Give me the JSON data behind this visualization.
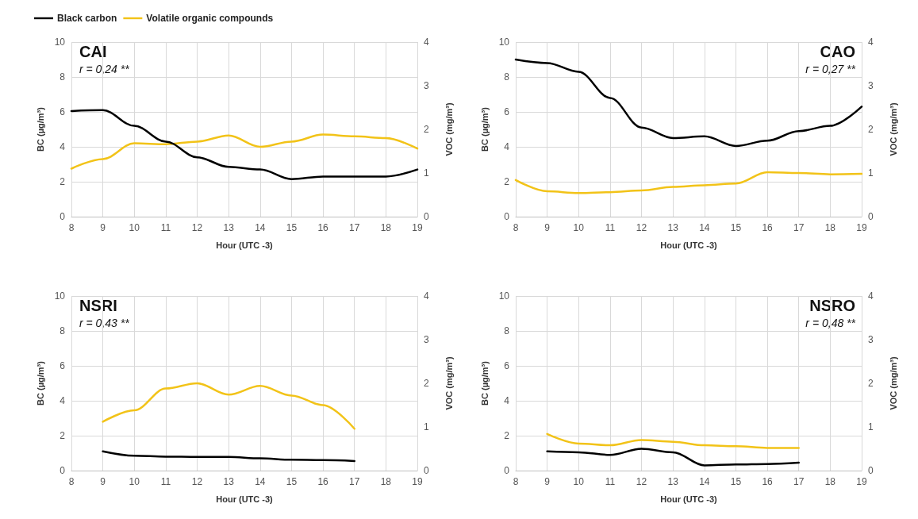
{
  "chart_data": [
    {
      "type": "line",
      "xlabel": "Hour (UTC -3)",
      "ylabel": "BC (µg/m³)",
      "y2label": "VOC (mg/m³)",
      "annotations": [
        "CAI",
        "r = 0,24 **"
      ],
      "x": [
        8,
        9,
        10,
        11,
        12,
        13,
        14,
        15,
        16,
        17,
        18,
        19
      ],
      "xlim": [
        8,
        19
      ],
      "xticks": [
        8,
        9,
        10,
        11,
        12,
        13,
        14,
        15,
        16,
        17,
        18,
        19
      ],
      "ylim": [
        0,
        10
      ],
      "yticks": [
        0,
        2,
        4,
        6,
        8,
        10
      ],
      "y2lim": [
        0,
        4
      ],
      "y2ticks": [
        0,
        1,
        2,
        3,
        4
      ],
      "grid": true,
      "legend": "top left",
      "marker": "none",
      "line_style": "solid",
      "series": [
        {
          "name": "Black carbon",
          "color": "#000000",
          "values": [
            6.05,
            6.1,
            5.2,
            4.3,
            3.4,
            2.85,
            2.7,
            2.15,
            2.3,
            2.3,
            2.3,
            2.7
          ]
        },
        {
          "name": "Volatile organic compounds",
          "color": "#f2c318",
          "axis": "y2",
          "values": [
            1.1,
            1.32,
            1.68,
            1.66,
            1.72,
            1.86,
            1.6,
            1.72,
            1.88,
            1.84,
            1.8,
            1.56
          ]
        }
      ]
    },
    {
      "type": "line",
      "xlabel": "Hour (UTC -3)",
      "ylabel": "BC (µg/m³)",
      "y2label": "VOC (mg/m³)",
      "annotations": [
        "CAO",
        "r = 0,27 **"
      ],
      "x": [
        8,
        9,
        10,
        11,
        12,
        13,
        14,
        15,
        16,
        17,
        18,
        19
      ],
      "xlim": [
        8,
        19
      ],
      "xticks": [
        8,
        9,
        10,
        11,
        12,
        13,
        14,
        15,
        16,
        17,
        18,
        19
      ],
      "ylim": [
        0,
        10
      ],
      "yticks": [
        0,
        2,
        4,
        6,
        8,
        10
      ],
      "y2lim": [
        0,
        4
      ],
      "y2ticks": [
        0,
        1,
        2,
        3,
        4
      ],
      "grid": true,
      "marker": "none",
      "line_style": "solid",
      "series": [
        {
          "color": "#000000",
          "values": [
            9.0,
            8.8,
            8.3,
            6.8,
            5.1,
            4.5,
            4.6,
            4.05,
            4.35,
            4.9,
            5.2,
            6.3
          ]
        },
        {
          "color": "#f2c318",
          "axis": "y2",
          "values": [
            0.84,
            0.58,
            0.54,
            0.56,
            0.6,
            0.68,
            0.72,
            0.76,
            1.02,
            1.0,
            0.97,
            0.98
          ]
        }
      ]
    },
    {
      "type": "line",
      "xlabel": "Hour (UTC -3)",
      "ylabel": "BC (µg/m³)",
      "y2label": "VOC (mg/m³)",
      "annotations": [
        "NSRI",
        "r = 0,43 **"
      ],
      "x": [
        9,
        10,
        11,
        12,
        13,
        14,
        15,
        16,
        17
      ],
      "xlim": [
        8,
        19
      ],
      "xticks": [
        8,
        9,
        10,
        11,
        12,
        13,
        14,
        15,
        16,
        17,
        18,
        19
      ],
      "ylim": [
        0,
        10
      ],
      "yticks": [
        0,
        2,
        4,
        6,
        8,
        10
      ],
      "y2lim": [
        0,
        4
      ],
      "y2ticks": [
        0,
        1,
        2,
        3,
        4
      ],
      "grid": true,
      "marker": "none",
      "line_style": "solid",
      "series": [
        {
          "color": "#000000",
          "values": [
            1.1,
            0.85,
            0.8,
            0.78,
            0.78,
            0.7,
            0.62,
            0.6,
            0.55
          ]
        },
        {
          "color": "#f2c318",
          "axis": "y2",
          "values": [
            1.12,
            1.38,
            1.88,
            2.0,
            1.74,
            1.94,
            1.72,
            1.5,
            0.96
          ]
        }
      ]
    },
    {
      "type": "line",
      "xlabel": "Hour (UTC -3)",
      "ylabel": "BC (µg/m³)",
      "y2label": "VOC (mg/m³)",
      "annotations": [
        "NSRO",
        "r = 0,48 **"
      ],
      "x": [
        9,
        10,
        11,
        12,
        13,
        14,
        15,
        16,
        17
      ],
      "xlim": [
        8,
        19
      ],
      "xticks": [
        8,
        9,
        10,
        11,
        12,
        13,
        14,
        15,
        16,
        17,
        18,
        19
      ],
      "ylim": [
        0,
        10
      ],
      "yticks": [
        0,
        2,
        4,
        6,
        8,
        10
      ],
      "y2lim": [
        0,
        4
      ],
      "y2ticks": [
        0,
        1,
        2,
        3,
        4
      ],
      "grid": true,
      "marker": "none",
      "line_style": "solid",
      "series": [
        {
          "color": "#000000",
          "values": [
            1.1,
            1.05,
            0.9,
            1.25,
            1.05,
            0.3,
            0.35,
            0.38,
            0.45
          ]
        },
        {
          "color": "#f2c318",
          "axis": "y2",
          "values": [
            0.84,
            0.62,
            0.58,
            0.7,
            0.66,
            0.58,
            0.56,
            0.52,
            0.52
          ]
        }
      ]
    }
  ]
}
